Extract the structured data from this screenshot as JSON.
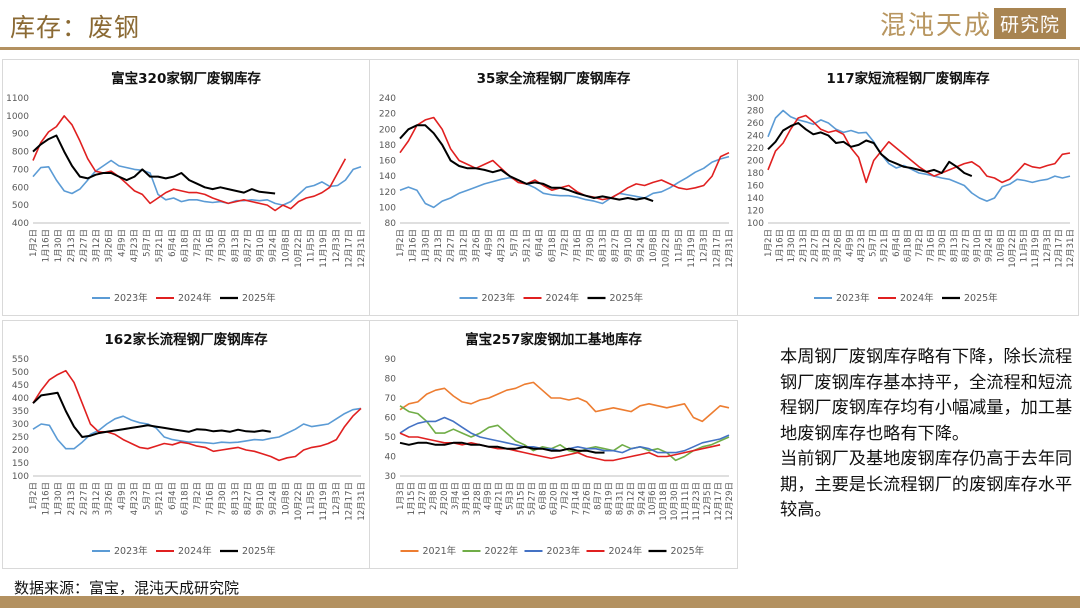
{
  "header": {
    "title": "库存：废钢"
  },
  "logo": {
    "text": "混沌天成",
    "box": "研究院"
  },
  "colors": {
    "accent": "#b39160",
    "y2021": "#ed7d31",
    "y2022": "#70ad47",
    "y2023": "#5b9bd5",
    "y2024": "#e02020",
    "y2025": "#000000",
    "blue257": "#4472c4"
  },
  "description": {
    "para1": "本周钢厂废钢库存略有下降，除长流程钢厂废钢库存基本持平，全流程和短流程钢厂废钢库存均有小幅减量，加工基地废钢库存也略有下降。",
    "para2": "当前钢厂及基地废钢库存仍高于去年同期，主要是长流程钢厂的废钢库存水平较高。"
  },
  "source": "数据来源：富宝，混沌天成研究院",
  "chart_data": [
    {
      "type": "line",
      "title": "富宝320家钢厂废钢库存",
      "x_ticks": [
        "1月2日",
        "1月16日",
        "1月30日",
        "2月13日",
        "2月27日",
        "3月12日",
        "3月26日",
        "4月9日",
        "4月23日",
        "5月7日",
        "5月21日",
        "6月4日",
        "6月18日",
        "7月2日",
        "7月16日",
        "7月30日",
        "8月13日",
        "8月27日",
        "9月10日",
        "9月24日",
        "10月8日",
        "10月22日",
        "11月5日",
        "11月19日",
        "12月3日",
        "12月17日",
        "12月31日"
      ],
      "ylim": [
        400,
        1100
      ],
      "yticks": [
        400,
        500,
        600,
        700,
        800,
        900,
        1000,
        1100
      ],
      "series": [
        {
          "name": "2023年",
          "color": "#5b9bd5",
          "values": [
            660,
            710,
            715,
            640,
            580,
            565,
            590,
            640,
            690,
            720,
            750,
            720,
            710,
            700,
            695,
            680,
            560,
            530,
            540,
            520,
            530,
            530,
            520,
            515,
            520,
            510,
            525,
            525,
            530,
            525,
            530,
            510,
            500,
            520,
            560,
            600,
            610,
            630,
            605,
            610,
            640,
            700,
            715
          ]
        },
        {
          "name": "2024年",
          "color": "#e02020",
          "values": [
            750,
            850,
            910,
            940,
            1000,
            950,
            860,
            760,
            690,
            680,
            690,
            660,
            620,
            580,
            560,
            510,
            540,
            570,
            590,
            580,
            570,
            570,
            560,
            540,
            525,
            510,
            520,
            530,
            520,
            510,
            500,
            470,
            500,
            480,
            520,
            540,
            550,
            570,
            600,
            680,
            760
          ]
        },
        {
          "name": "2025年",
          "color": "#000000",
          "values": [
            800,
            840,
            870,
            890,
            800,
            720,
            660,
            650,
            670,
            680,
            680,
            660,
            640,
            660,
            700,
            660,
            660,
            650,
            660,
            680,
            640,
            620,
            600,
            590,
            600,
            590,
            580,
            570,
            590,
            575,
            570,
            565
          ]
        }
      ]
    },
    {
      "type": "line",
      "title": "35家全流程钢厂废钢库存",
      "x_ticks": [
        "1月2日",
        "1月16日",
        "1月30日",
        "2月13日",
        "2月27日",
        "3月12日",
        "3月26日",
        "4月9日",
        "4月23日",
        "5月7日",
        "5月21日",
        "6月4日",
        "6月18日",
        "7月2日",
        "7月16日",
        "7月30日",
        "8月13日",
        "8月27日",
        "9月10日",
        "9月24日",
        "10月8日",
        "10月22日",
        "11月5日",
        "11月19日",
        "12月3日",
        "12月17日",
        "12月31日"
      ],
      "ylim": [
        80,
        240
      ],
      "yticks": [
        80,
        100,
        120,
        140,
        160,
        180,
        200,
        220,
        240
      ],
      "series": [
        {
          "name": "2023年",
          "color": "#5b9bd5",
          "values": [
            122,
            126,
            122,
            105,
            100,
            108,
            112,
            118,
            122,
            126,
            130,
            133,
            136,
            138,
            135,
            130,
            125,
            118,
            116,
            115,
            115,
            113,
            110,
            108,
            105,
            112,
            118,
            116,
            114,
            112,
            118,
            120,
            125,
            132,
            138,
            145,
            150,
            158,
            162,
            165
          ]
        },
        {
          "name": "2024年",
          "color": "#e02020",
          "values": [
            170,
            185,
            205,
            212,
            215,
            200,
            175,
            160,
            155,
            150,
            155,
            160,
            150,
            140,
            132,
            130,
            135,
            128,
            122,
            125,
            128,
            120,
            115,
            113,
            110,
            112,
            118,
            125,
            130,
            128,
            132,
            135,
            130,
            125,
            123,
            125,
            128,
            140,
            165,
            170
          ]
        },
        {
          "name": "2025年",
          "color": "#000000",
          "values": [
            188,
            200,
            205,
            205,
            195,
            180,
            160,
            153,
            150,
            150,
            148,
            145,
            148,
            140,
            135,
            130,
            132,
            130,
            125,
            125,
            122,
            118,
            115,
            112,
            114,
            112,
            110,
            112,
            110,
            112,
            108
          ]
        }
      ]
    },
    {
      "type": "line",
      "title": "117家短流程钢厂废钢库存",
      "x_ticks": [
        "1月2日",
        "1月16日",
        "1月30日",
        "2月13日",
        "2月27日",
        "3月12日",
        "3月26日",
        "4月9日",
        "4月23日",
        "5月7日",
        "5月21日",
        "6月4日",
        "6月18日",
        "7月2日",
        "7月16日",
        "7月30日",
        "8月13日",
        "8月27日",
        "9月10日",
        "9月24日",
        "10月8日",
        "10月22日",
        "11月5日",
        "11月19日",
        "12月3日",
        "12月17日",
        "12月31日"
      ],
      "ylim": [
        100,
        300
      ],
      "yticks": [
        100,
        120,
        140,
        160,
        180,
        200,
        220,
        240,
        260,
        280,
        300
      ],
      "series": [
        {
          "name": "2023年",
          "color": "#5b9bd5",
          "values": [
            238,
            268,
            280,
            270,
            265,
            262,
            258,
            265,
            260,
            250,
            245,
            248,
            244,
            245,
            230,
            210,
            195,
            188,
            192,
            186,
            180,
            178,
            175,
            172,
            170,
            165,
            160,
            148,
            140,
            135,
            140,
            158,
            162,
            170,
            168,
            165,
            168,
            170,
            175,
            172,
            175
          ]
        },
        {
          "name": "2024年",
          "color": "#e02020",
          "values": [
            185,
            215,
            228,
            250,
            268,
            272,
            262,
            250,
            245,
            248,
            242,
            220,
            205,
            165,
            200,
            215,
            230,
            220,
            210,
            200,
            190,
            182,
            175,
            180,
            185,
            190,
            195,
            198,
            190,
            175,
            172,
            165,
            170,
            182,
            195,
            190,
            188,
            192,
            195,
            210,
            212
          ]
        },
        {
          "name": "2025年",
          "color": "#000000",
          "values": [
            218,
            230,
            248,
            255,
            260,
            250,
            242,
            245,
            240,
            228,
            230,
            222,
            225,
            232,
            228,
            210,
            200,
            195,
            190,
            188,
            185,
            182,
            185,
            180,
            198,
            190,
            180,
            175
          ]
        }
      ]
    },
    {
      "type": "line",
      "title": "162家长流程钢厂废钢库存",
      "x_ticks": [
        "1月2日",
        "1月16日",
        "1月30日",
        "2月13日",
        "2月27日",
        "3月12日",
        "3月26日",
        "4月9日",
        "4月23日",
        "5月7日",
        "5月21日",
        "6月4日",
        "6月18日",
        "7月2日",
        "7月16日",
        "7月30日",
        "8月13日",
        "8月27日",
        "9月10日",
        "9月24日",
        "10月8日",
        "10月22日",
        "11月5日",
        "11月19日",
        "12月3日",
        "12月17日",
        "12月31日"
      ],
      "ylim": [
        100,
        550
      ],
      "yticks": [
        100,
        150,
        200,
        250,
        300,
        350,
        400,
        450,
        500,
        550
      ],
      "series": [
        {
          "name": "2023年",
          "color": "#5b9bd5",
          "values": [
            280,
            300,
            295,
            240,
            205,
            205,
            230,
            260,
            275,
            300,
            320,
            330,
            315,
            305,
            300,
            285,
            250,
            240,
            235,
            230,
            230,
            228,
            225,
            230,
            228,
            230,
            235,
            240,
            238,
            245,
            250,
            265,
            280,
            300,
            290,
            295,
            300,
            320,
            340,
            355,
            360
          ]
        },
        {
          "name": "2024年",
          "color": "#e02020",
          "values": [
            380,
            430,
            470,
            490,
            505,
            460,
            380,
            300,
            270,
            270,
            260,
            240,
            225,
            210,
            205,
            215,
            225,
            220,
            230,
            225,
            215,
            210,
            195,
            200,
            205,
            210,
            200,
            195,
            185,
            175,
            160,
            170,
            175,
            200,
            210,
            215,
            225,
            240,
            290,
            330,
            360
          ]
        },
        {
          "name": "2025年",
          "color": "#000000",
          "values": [
            380,
            410,
            415,
            420,
            350,
            290,
            250,
            255,
            265,
            270,
            275,
            280,
            285,
            290,
            295,
            290,
            285,
            280,
            275,
            270,
            280,
            278,
            272,
            275,
            270,
            278,
            272,
            270,
            275,
            270
          ]
        }
      ]
    },
    {
      "type": "line",
      "title": "富宝257家废钢加工基地库存",
      "x_ticks": [
        "1月3日",
        "1月15日",
        "1月27日",
        "2月8日",
        "2月20日",
        "3月4日",
        "3月16日",
        "3月28日",
        "4月9日",
        "4月21日",
        "5月3日",
        "5月15日",
        "5月27日",
        "6月8日",
        "6月20日",
        "7月2日",
        "7月14日",
        "7月26日",
        "8月7日",
        "8月19日",
        "8月31日",
        "9月12日",
        "9月24日",
        "10月6日",
        "10月18日",
        "10月30日",
        "11月11日",
        "11月23日",
        "12月5日",
        "12月17日",
        "12月29日"
      ],
      "ylim": [
        30,
        90
      ],
      "yticks": [
        30,
        40,
        50,
        60,
        70,
        80,
        90
      ],
      "series": [
        {
          "name": "2021年",
          "color": "#ed7d31",
          "values": [
            64,
            67,
            68,
            72,
            74,
            75,
            71,
            68,
            67,
            69,
            70,
            72,
            74,
            75,
            77,
            78,
            74,
            70,
            70,
            69,
            70,
            68,
            63,
            64,
            65,
            64,
            63,
            66,
            67,
            66,
            65,
            66,
            67,
            60,
            58,
            62,
            66,
            65
          ]
        },
        {
          "name": "2022年",
          "color": "#70ad47",
          "values": [
            66,
            63,
            62,
            58,
            52,
            52,
            54,
            52,
            50,
            52,
            55,
            56,
            52,
            48,
            46,
            43,
            45,
            44,
            46,
            43,
            42,
            44,
            45,
            44,
            43,
            46,
            44,
            45,
            43,
            44,
            42,
            38,
            40,
            43,
            45,
            46,
            48,
            50
          ]
        },
        {
          "name": "2023年",
          "color": "#4472c4",
          "values": [
            52,
            55,
            57,
            58,
            58,
            60,
            58,
            55,
            52,
            50,
            49,
            48,
            47,
            46,
            45,
            45,
            44,
            44,
            43,
            44,
            45,
            44,
            44,
            43,
            43,
            42,
            44,
            45,
            44,
            42,
            42,
            42,
            43,
            45,
            47,
            48,
            49,
            51
          ]
        },
        {
          "name": "2024年",
          "color": "#e02020",
          "values": [
            52,
            50,
            50,
            49,
            48,
            47,
            47,
            46,
            47,
            46,
            45,
            44,
            44,
            43,
            42,
            41,
            40,
            39,
            40,
            41,
            42,
            40,
            39,
            38,
            38,
            39,
            40,
            41,
            42,
            40,
            40,
            41,
            42,
            43,
            44,
            45,
            46
          ]
        },
        {
          "name": "2025年",
          "color": "#000000",
          "values": [
            47,
            46,
            47,
            47,
            46,
            46,
            47,
            47,
            46,
            46,
            45,
            45,
            44,
            44,
            45,
            44,
            44,
            43,
            43,
            44,
            43,
            43,
            42,
            42
          ]
        }
      ]
    }
  ]
}
